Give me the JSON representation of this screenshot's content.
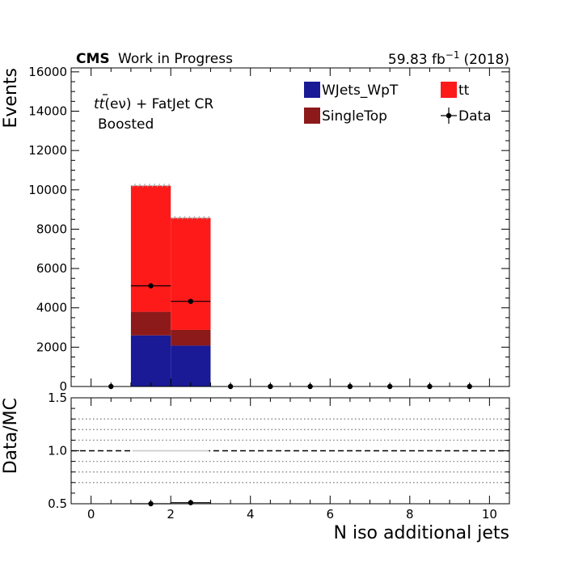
{
  "chart_data": {
    "type": "bar",
    "stacked": true,
    "header": {
      "experiment": "CMS",
      "status": "Work in Progress",
      "lumi_prefix": "59.83 fb",
      "lumi_exp": "−1",
      "lumi_suffix": "(2018)"
    },
    "region": {
      "line1_a": "tt",
      "line1_b": "(eν) + FatJet CR",
      "line2": "Boosted"
    },
    "xlabel": "N iso additional jets",
    "ylabel": "Events",
    "ratio_ylabel": "Data/MC",
    "xlim": [
      -0.5,
      10.5
    ],
    "ylim": [
      0,
      16200
    ],
    "ratio_ylim": [
      0.5,
      1.5
    ],
    "x_ticks": [
      0,
      2,
      4,
      6,
      8,
      10
    ],
    "y_ticks": [
      0,
      2000,
      4000,
      6000,
      8000,
      10000,
      12000,
      14000,
      16000
    ],
    "ratio_y_ticks": [
      0.5,
      1.0,
      1.5
    ],
    "ratio_y_tick_labels": [
      "0.5",
      "1.0",
      "1.5"
    ],
    "ratio_gridlines": [
      0.7,
      0.8,
      0.9,
      1.1,
      1.2,
      1.3
    ],
    "bins": [
      [
        0,
        1
      ],
      [
        1,
        2
      ],
      [
        2,
        3
      ],
      [
        3,
        4
      ],
      [
        4,
        5
      ],
      [
        5,
        6
      ],
      [
        6,
        7
      ],
      [
        7,
        8
      ],
      [
        8,
        9
      ],
      [
        9,
        10
      ]
    ],
    "series": [
      {
        "name": "WJets_WpT",
        "color": "#1a1a96",
        "values": [
          0,
          2600,
          2080,
          0,
          0,
          0,
          0,
          0,
          0,
          0
        ]
      },
      {
        "name": "SingleTop",
        "color": "#8c1a1a",
        "values": [
          0,
          1200,
          800,
          0,
          0,
          0,
          0,
          0,
          0,
          0
        ]
      },
      {
        "name": "tt",
        "color": "#ff1a1a",
        "values": [
          0,
          6420,
          5700,
          0,
          0,
          0,
          0,
          0,
          0,
          0
        ]
      }
    ],
    "data": {
      "name": "Data",
      "x": [
        0.5,
        1.5,
        2.5,
        3.5,
        4.5,
        5.5,
        6.5,
        7.5,
        8.5,
        9.5
      ],
      "y": [
        0,
        5120,
        4330,
        0,
        0,
        0,
        0,
        0,
        0,
        0
      ]
    },
    "ratio": {
      "x": [
        1.5,
        2.5
      ],
      "y": [
        0.5,
        0.51
      ]
    },
    "legend_order": [
      "WJets_WpT",
      "tt",
      "SingleTop",
      "Data"
    ]
  }
}
